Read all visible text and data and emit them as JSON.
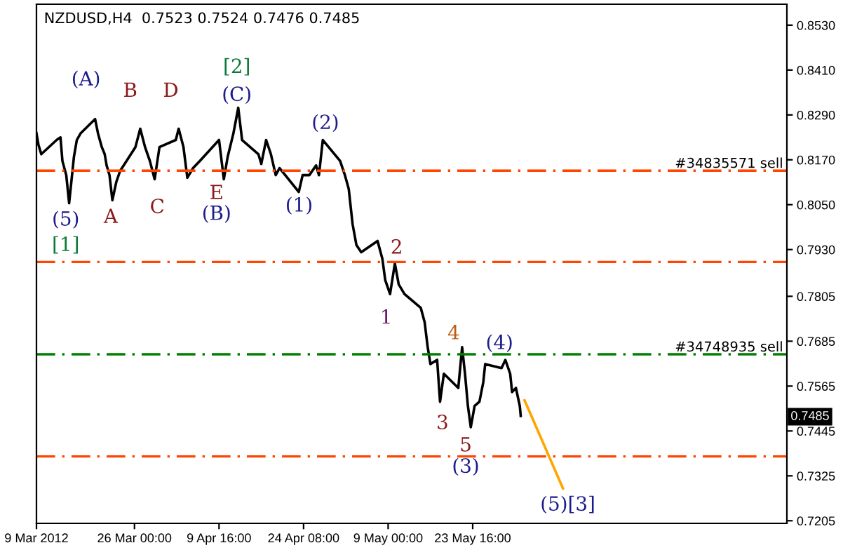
{
  "chart_data": {
    "type": "line",
    "title": "NZDUSD,H4  0.7523 0.7524 0.7476 0.7485",
    "x": [
      "2012-03-09T00:00",
      "2012-03-09T08:00",
      "2012-03-09T20:00",
      "2012-03-12T12:00",
      "2012-03-13T04:00",
      "2012-03-13T12:00",
      "2012-03-14T04:00",
      "2012-03-14T16:00",
      "2012-03-15T12:00",
      "2012-03-16T00:00",
      "2012-03-16T16:00",
      "2012-03-19T04:00",
      "2012-03-19T16:00",
      "2012-03-20T08:00",
      "2012-03-20T20:00",
      "2012-03-21T04:00",
      "2012-03-21T16:00",
      "2012-03-22T04:00",
      "2012-03-22T20:00",
      "2012-03-23T12:00",
      "2012-03-26T04:00",
      "2012-03-27T00:00",
      "2012-03-27T20:00",
      "2012-03-28T16:00",
      "2012-03-29T12:00",
      "2012-03-30T08:00",
      "2012-04-02T04:00",
      "2012-04-02T16:00",
      "2012-04-03T12:00",
      "2012-04-04T04:00",
      "2012-04-05T04:00",
      "2012-04-06T08:00",
      "2012-04-09T16:00",
      "2012-04-10T12:00",
      "2012-04-11T04:00",
      "2012-04-12T04:00",
      "2012-04-13T00:00",
      "2012-04-13T16:00",
      "2012-04-16T12:00",
      "2012-04-17T00:00",
      "2012-04-17T20:00",
      "2012-04-18T16:00",
      "2012-04-19T12:00",
      "2012-04-20T04:00",
      "2012-04-23T12:00",
      "2012-04-24T04:00",
      "2012-04-25T08:00",
      "2012-04-26T12:00",
      "2012-04-27T00:00",
      "2012-04-27T16:00",
      "2012-04-30T16:00",
      "2012-05-01T12:00",
      "2012-05-02T04:00",
      "2012-05-02T20:00",
      "2012-05-03T12:00",
      "2012-05-04T08:00",
      "2012-05-07T04:00",
      "2012-05-08T00:00",
      "2012-05-08T12:00",
      "2012-05-09T08:00",
      "2012-05-10T04:00",
      "2012-05-10T20:00",
      "2012-05-11T20:00",
      "2012-05-14T16:00",
      "2012-05-15T08:00",
      "2012-05-15T20:00",
      "2012-05-16T08:00",
      "2012-05-17T12:00",
      "2012-05-18T00:00",
      "2012-05-18T16:00",
      "2012-05-21T04:00",
      "2012-05-21T20:00",
      "2012-05-22T08:00",
      "2012-05-22T20:00",
      "2012-05-23T08:00",
      "2012-05-24T00:00",
      "2012-05-24T20:00",
      "2012-05-25T12:00",
      "2012-05-25T20:00",
      "2012-05-28T16:00",
      "2012-05-29T08:00",
      "2012-05-30T04:00",
      "2012-05-30T12:00",
      "2012-05-31T04:00",
      "2012-05-31T20:00",
      "2012-06-01T00:00"
    ],
    "series": [
      {
        "color": "#000000",
        "values": [
          0.8241,
          0.8211,
          0.8185,
          0.8223,
          0.823,
          0.8167,
          0.8129,
          0.8054,
          0.8178,
          0.8223,
          0.8241,
          0.8279,
          0.8241,
          0.8204,
          0.8185,
          0.8155,
          0.8129,
          0.8062,
          0.811,
          0.814,
          0.8204,
          0.8253,
          0.8204,
          0.8167,
          0.8118,
          0.8204,
          0.8223,
          0.8253,
          0.8204,
          0.8122,
          0.8148,
          0.8167,
          0.8223,
          0.8118,
          0.8178,
          0.8241,
          0.8309,
          0.8223,
          0.8185,
          0.8159,
          0.8223,
          0.8185,
          0.8129,
          0.8148,
          0.8084,
          0.8129,
          0.8129,
          0.8155,
          0.8129,
          0.8223,
          0.8167,
          0.8129,
          0.8092,
          0.7998,
          0.7942,
          0.7923,
          0.7953,
          0.7905,
          0.7848,
          0.7811,
          0.7893,
          0.7837,
          0.7811,
          0.7774,
          0.7736,
          0.7672,
          0.7624,
          0.7635,
          0.7523,
          0.7598,
          0.756,
          0.7669,
          0.7598,
          0.7512,
          0.7455,
          0.7512,
          0.7523,
          0.7575,
          0.7624,
          0.7613,
          0.7635,
          0.7598,
          0.7549,
          0.756,
          0.7512,
          0.7485
        ]
      },
      {
        "color": "#ffa500",
        "x": [
          "2012-06-01T16:00",
          "2012-06-08T08:00"
        ],
        "values": [
          0.7527,
          0.7291
        ]
      }
    ],
    "xlim": [
      "2012-03-09T00:00",
      "2012-07-17T04:00"
    ],
    "xticks": [
      {
        "value": "2012-03-09T00:00",
        "label": "9 Mar 2012"
      },
      {
        "value": "2012-03-26T00:00",
        "label": "26 Mar 00:00"
      },
      {
        "value": "2012-04-09T16:00",
        "label": "9 Apr 16:00"
      },
      {
        "value": "2012-04-24T08:00",
        "label": "24 Apr 08:00"
      },
      {
        "value": "2012-05-09T00:00",
        "label": "9 May 00:00"
      },
      {
        "value": "2012-05-23T16:00",
        "label": "23 May 16:00"
      }
    ],
    "ylim": [
      0.7198,
      0.8586
    ],
    "yticks": [
      {
        "value": 0.7205,
        "label": "0.7205"
      },
      {
        "value": 0.7325,
        "label": "0.7325"
      },
      {
        "value": 0.7445,
        "label": "0.7445"
      },
      {
        "value": 0.7565,
        "label": "0.7565"
      },
      {
        "value": 0.7685,
        "label": "0.7685"
      },
      {
        "value": 0.7805,
        "label": "0.7805"
      },
      {
        "value": 0.793,
        "label": "0.7930"
      },
      {
        "value": 0.805,
        "label": "0.8050"
      },
      {
        "value": 0.817,
        "label": "0.8170"
      },
      {
        "value": 0.829,
        "label": "0.8290"
      },
      {
        "value": 0.841,
        "label": "0.8410"
      },
      {
        "value": 0.853,
        "label": "0.8530"
      }
    ],
    "ref_lines": [
      {
        "axis": "y",
        "value": 0.8141,
        "label": "#34835571 sell",
        "color": "#ff4500",
        "line_style": "dashdot"
      },
      {
        "axis": "y",
        "value": 0.7897,
        "color": "#ff4500",
        "line_style": "dashdot"
      },
      {
        "axis": "y",
        "value": 0.765,
        "label": "#34748935 sell",
        "color": "#008000",
        "line_style": "dashdot"
      },
      {
        "axis": "y",
        "value": 0.7377,
        "color": "#ff4500",
        "line_style": "dashdot"
      }
    ],
    "annotations": [
      "(A)",
      "B",
      "D",
      "[2]",
      "(C)",
      "(2)",
      "(5)",
      "[1]",
      "A",
      "C",
      "E",
      "(B)",
      "(1)",
      "2",
      "1",
      "4",
      "(4)",
      "3",
      "5",
      "(3)",
      "(5)[3]",
      "0.7485"
    ]
  }
}
